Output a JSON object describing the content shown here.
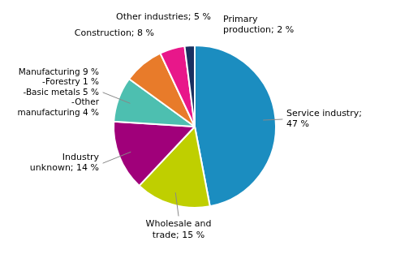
{
  "chart_data": {
    "type": "pie",
    "values": [
      47,
      15,
      14,
      9,
      8,
      5,
      2
    ],
    "value_labels": [
      "Service industry;\n47 %",
      "Wholesale and\ntrade; 15 %",
      "Industry\nunknown; 14 %",
      "Manufacturing 9 %\n-Forestry 1 %\n-Basic metals 5 %\n-Other\nmanufacturing 4 %",
      "Construction; 8 %",
      "Other industries; 5 %",
      "Primary\nproduction; 2 %"
    ],
    "colors": [
      "#1B8DC0",
      "#BFCF00",
      "#A0007A",
      "#4DBFB0",
      "#E87B2A",
      "#E8178A",
      "#1A3060"
    ],
    "data_labels": true
  }
}
